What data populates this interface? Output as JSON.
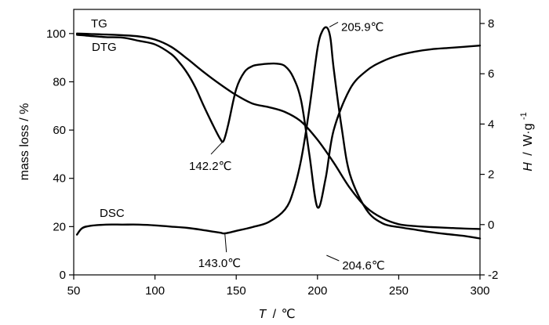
{
  "chart_data": {
    "type": "line",
    "x_axis": {
      "label_symbol": "T",
      "label_unit": "℃",
      "range": [
        50,
        300
      ],
      "ticks": [
        50,
        100,
        150,
        200,
        250,
        300
      ]
    },
    "y_left": {
      "label": "mass loss / %",
      "range": [
        0,
        110
      ],
      "ticks": [
        0,
        20,
        40,
        60,
        80,
        100
      ]
    },
    "y_right": {
      "label_symbol": "H",
      "label_unit": "W·g",
      "label_exponent": "-1",
      "range": [
        -2,
        8.56
      ],
      "ticks": [
        -2,
        0,
        2,
        4,
        6,
        8
      ]
    },
    "series": [
      {
        "name": "TG",
        "axis": "left",
        "x": [
          52,
          60,
          70,
          80,
          90,
          100,
          110,
          120,
          130,
          140,
          150,
          160,
          170,
          180,
          190,
          200,
          210,
          220,
          230,
          240,
          250,
          260,
          270,
          280,
          290,
          300
        ],
        "y": [
          100,
          99.8,
          99.6,
          99.3,
          98.8,
          97.5,
          94.5,
          89.5,
          84,
          79,
          74.5,
          71,
          69.5,
          67.5,
          63.5,
          56,
          46.5,
          36,
          28,
          23.5,
          21,
          20.2,
          19.8,
          19.5,
          19.2,
          19
        ]
      },
      {
        "name": "DTG",
        "axis": "left",
        "x": [
          52,
          60,
          70,
          80,
          90,
          100,
          110,
          115,
          120,
          125,
          130,
          135,
          140,
          142.2,
          145,
          150,
          155,
          160,
          165,
          170,
          175,
          180,
          185,
          190,
          195,
          200,
          205,
          210,
          220,
          230,
          240,
          250,
          260,
          270,
          280,
          290,
          300
        ],
        "y": [
          99.5,
          99,
          98.5,
          98.3,
          97,
          95.5,
          91.5,
          88,
          83.5,
          77.5,
          70,
          63,
          56.5,
          55.5,
          62,
          77,
          84,
          86.5,
          87.2,
          87.5,
          87.5,
          86.5,
          82,
          72,
          50,
          28,
          40,
          60,
          77,
          84.5,
          88.5,
          91,
          92.5,
          93.5,
          94,
          94.5,
          95
        ]
      },
      {
        "name": "DSC",
        "axis": "right",
        "x": [
          52,
          55,
          60,
          70,
          80,
          90,
          100,
          110,
          120,
          130,
          140,
          143,
          150,
          160,
          170,
          180,
          185,
          190,
          195,
          200,
          203,
          205.9,
          208,
          210,
          215,
          220,
          230,
          240,
          250,
          260,
          270,
          280,
          290,
          300
        ],
        "y": [
          -0.4,
          -0.15,
          -0.05,
          0,
          0,
          0,
          -0.03,
          -0.08,
          -0.13,
          -0.22,
          -0.32,
          -0.35,
          -0.25,
          -0.1,
          0.1,
          0.6,
          1.3,
          2.6,
          4.6,
          7.0,
          7.7,
          7.83,
          7.4,
          6.2,
          3.8,
          2.0,
          0.6,
          0.05,
          -0.1,
          -0.2,
          -0.3,
          -0.38,
          -0.45,
          -0.55
        ]
      }
    ],
    "annotations": [
      {
        "text": "205.9℃",
        "x": 205.9,
        "y": 7.83,
        "axis": "right"
      },
      {
        "text": "142.2℃",
        "x": 142.2,
        "y": 55.5,
        "axis": "left"
      },
      {
        "text": "143.0℃",
        "x": 143.0,
        "y": -0.35,
        "axis": "right"
      },
      {
        "text": "204.6℃",
        "x": 204.6,
        "y": 8.5,
        "axis": "left"
      }
    ],
    "grid": false,
    "legend": "inline labels"
  }
}
